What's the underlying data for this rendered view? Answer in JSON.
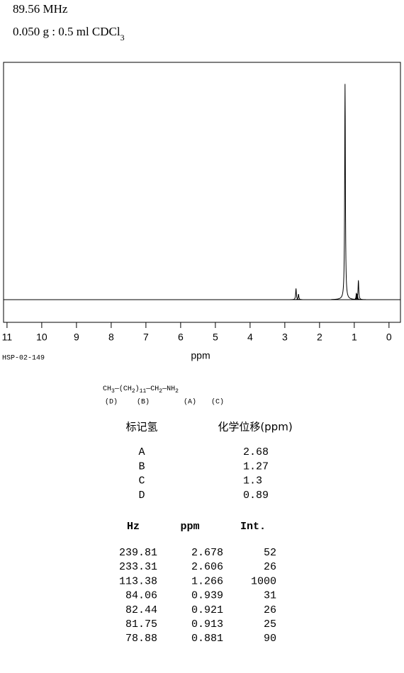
{
  "header": {
    "frequency": "89.56 MHz",
    "sample": "0.050 g : 0.5 ml CDCl",
    "sample_sub": "3"
  },
  "chart_data": {
    "type": "spectrum",
    "xlabel": "ppm",
    "code": "HSP-02-149",
    "xlim": [
      11.1,
      -0.33
    ],
    "xticks": [
      11,
      10,
      9,
      8,
      7,
      6,
      5,
      4,
      3,
      2,
      1,
      0
    ],
    "ylim": [
      -105,
      1100
    ],
    "color": "#000000",
    "peaks": {
      "columns": [
        "Hz",
        "ppm",
        "Int."
      ],
      "rows": [
        [
          239.81,
          2.678,
          52
        ],
        [
          233.31,
          2.606,
          26
        ],
        [
          113.38,
          1.266,
          1000
        ],
        [
          84.06,
          0.939,
          31
        ],
        [
          82.44,
          0.921,
          26
        ],
        [
          81.75,
          0.913,
          25
        ],
        [
          78.88,
          0.881,
          90
        ]
      ]
    }
  },
  "structure": {
    "formula": [
      "CH",
      "3",
      "—(CH",
      "2",
      ")",
      "11",
      "—CH",
      "2",
      "—NH",
      "2"
    ],
    "labels": [
      "(D)",
      "(B)",
      "(A)",
      "(C)"
    ]
  },
  "assignments": {
    "columns": [
      "标记氢",
      "化学位移(ppm)"
    ],
    "rows": [
      [
        "A",
        2.68
      ],
      [
        "B",
        1.27
      ],
      [
        "C",
        1.3
      ],
      [
        "D",
        0.89
      ]
    ]
  }
}
